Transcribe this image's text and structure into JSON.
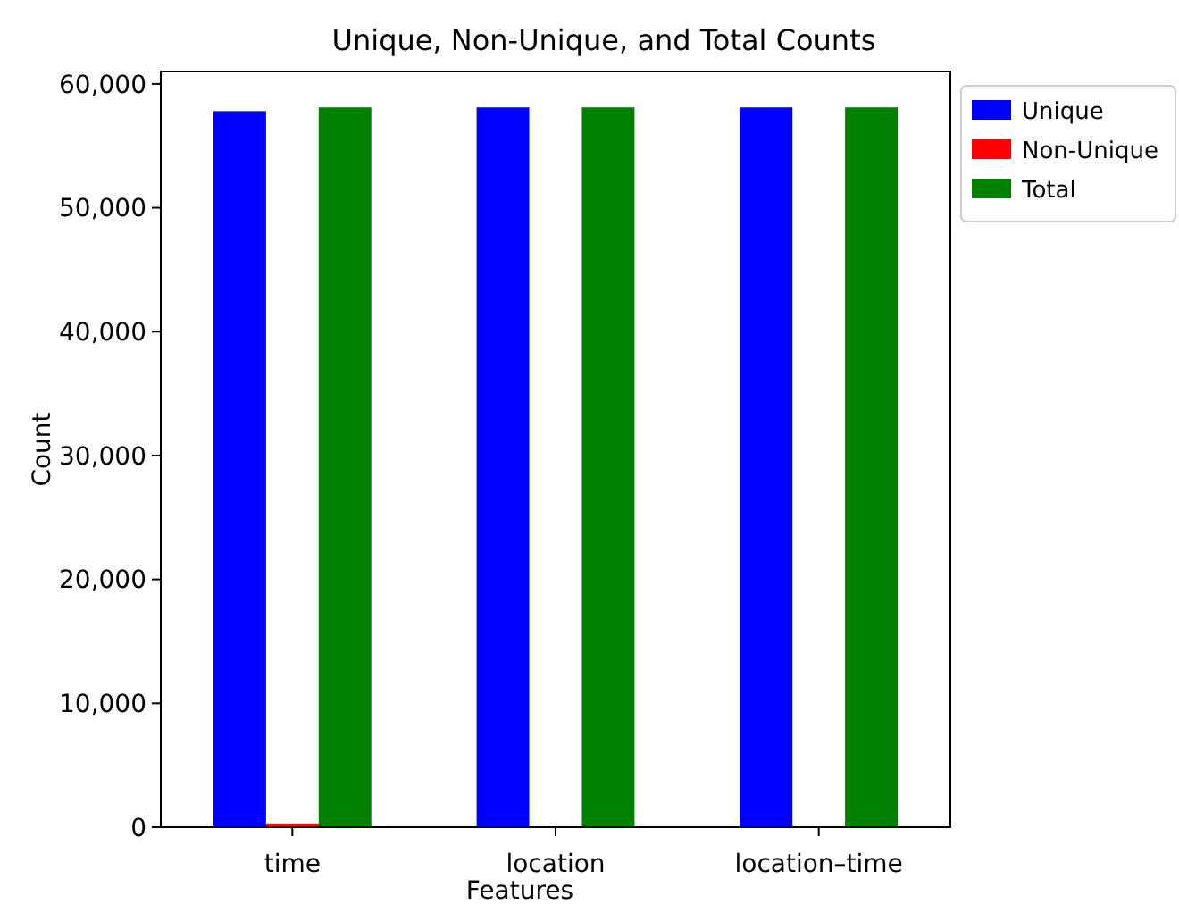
{
  "chart_data": {
    "type": "bar",
    "title": "Unique, Non-Unique, and Total Counts",
    "xlabel": "Features",
    "ylabel": "Count",
    "categories": [
      "time",
      "location",
      "location–time"
    ],
    "series": [
      {
        "name": "Unique",
        "color": "#0000ff",
        "values": [
          57800,
          58100,
          58100
        ]
      },
      {
        "name": "Non-Unique",
        "color": "#ff0000",
        "values": [
          300,
          0,
          0
        ]
      },
      {
        "name": "Total",
        "color": "#008000",
        "values": [
          58100,
          58100,
          58100
        ]
      }
    ],
    "ylim": [
      0,
      61000
    ],
    "yticks": [
      {
        "value": 0,
        "label": "0"
      },
      {
        "value": 10000,
        "label": "10,000"
      },
      {
        "value": 20000,
        "label": "20,000"
      },
      {
        "value": 30000,
        "label": "30,000"
      },
      {
        "value": 40000,
        "label": "40,000"
      },
      {
        "value": 50000,
        "label": "50,000"
      },
      {
        "value": 60000,
        "label": "60,000"
      }
    ],
    "legend": "right",
    "grid": false
  }
}
